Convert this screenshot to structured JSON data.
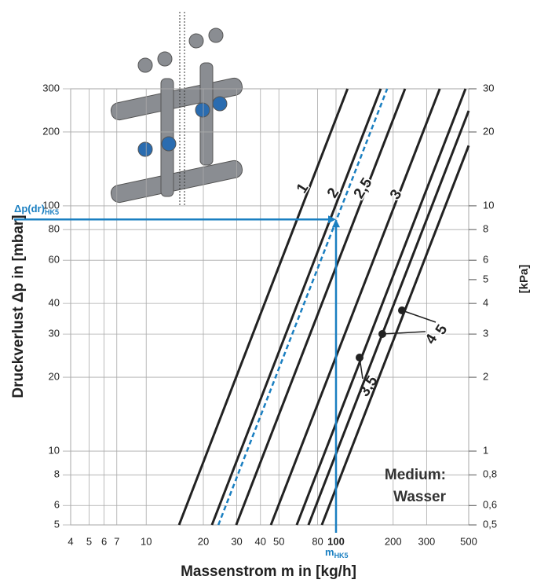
{
  "chart_data": {
    "type": "line",
    "log_x": true,
    "log_y": true,
    "grid": true,
    "x_label": "Massenstrom m in [kg/h]",
    "y_label": "Druckverlust Δp in [mbar]",
    "y2_label": "[kPa]",
    "xlim": [
      4,
      500
    ],
    "ylim": [
      5,
      300
    ],
    "y2lim": [
      0.5,
      30
    ],
    "xticks": [
      4,
      5,
      6,
      7,
      10,
      20,
      30,
      40,
      50,
      80,
      100,
      200,
      300,
      500
    ],
    "yticks": [
      5,
      6,
      8,
      10,
      20,
      30,
      40,
      60,
      80,
      100,
      200,
      300
    ],
    "y2ticks": [
      {
        "value": 0.5,
        "label": "0,5"
      },
      {
        "value": 0.6,
        "label": "0,6"
      },
      {
        "value": 0.8,
        "label": "0,8"
      },
      1,
      2,
      3,
      4,
      5,
      6,
      8,
      10,
      20,
      30
    ],
    "series": [
      {
        "name": "1",
        "color": "#222222",
        "x": [
          14.9,
          115
        ],
        "values": [
          5,
          300
        ]
      },
      {
        "name": "2",
        "color": "#222222",
        "x": [
          22.2,
          172
        ],
        "values": [
          5,
          300
        ]
      },
      {
        "color": "#1a7fc1",
        "dashed": true,
        "x": [
          24,
          186
        ],
        "values": [
          5,
          300
        ]
      },
      {
        "name": "2,5",
        "color": "#222222",
        "x": [
          29.8,
          231
        ],
        "values": [
          5,
          300
        ]
      },
      {
        "name": "3",
        "color": "#222222",
        "x": [
          45.4,
          352
        ],
        "values": [
          5,
          300
        ]
      },
      {
        "name": "3,5",
        "color": "#222222",
        "x": [
          62.1,
          481
        ],
        "values": [
          5,
          300
        ]
      },
      {
        "name": "4",
        "color": "#222222",
        "x": [
          71.6,
          500
        ],
        "values": [
          5,
          244
        ]
      },
      {
        "name": "5",
        "color": "#222222",
        "x": [
          84.2,
          500
        ],
        "values": [
          5,
          176
        ]
      }
    ],
    "marker": {
      "x": 100,
      "y": 88,
      "color": "#1a7fc1"
    },
    "annotations": {
      "dp_label": "Δp(dr)",
      "dp_sub": "HK5",
      "m_label": "m",
      "m_sub": "HK5",
      "medium": [
        "Medium:",
        "Wasser"
      ]
    }
  }
}
